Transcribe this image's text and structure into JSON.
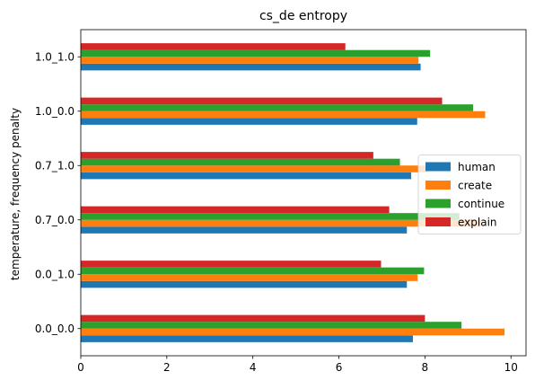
{
  "chart_data": {
    "type": "bar",
    "orientation": "horizontal",
    "title": "cs_de entropy",
    "xlabel": "",
    "ylabel": "temperature, frequency penalty",
    "categories": [
      "0.0_0.0",
      "0.0_1.0",
      "0.7_0.0",
      "0.7_1.0",
      "1.0_0.0",
      "1.0_1.0"
    ],
    "xlim": [
      0,
      10.35
    ],
    "xticks": [
      "0",
      "2",
      "4",
      "6",
      "8",
      "10"
    ],
    "grid": false,
    "legend_position": "center-right",
    "series": [
      {
        "name": "human",
        "color": "#1f77b4",
        "values": [
          7.72,
          7.58,
          7.58,
          7.68,
          7.82,
          7.9
        ]
      },
      {
        "name": "create",
        "color": "#ff7f0e",
        "values": [
          9.85,
          7.83,
          9.3,
          8.05,
          9.4,
          7.85
        ]
      },
      {
        "name": "continue",
        "color": "#2ca02c",
        "values": [
          8.85,
          7.98,
          8.8,
          7.42,
          9.12,
          8.12
        ]
      },
      {
        "name": "explain",
        "color": "#d62728",
        "values": [
          8.0,
          6.98,
          7.17,
          6.8,
          8.4,
          6.15
        ]
      }
    ]
  }
}
